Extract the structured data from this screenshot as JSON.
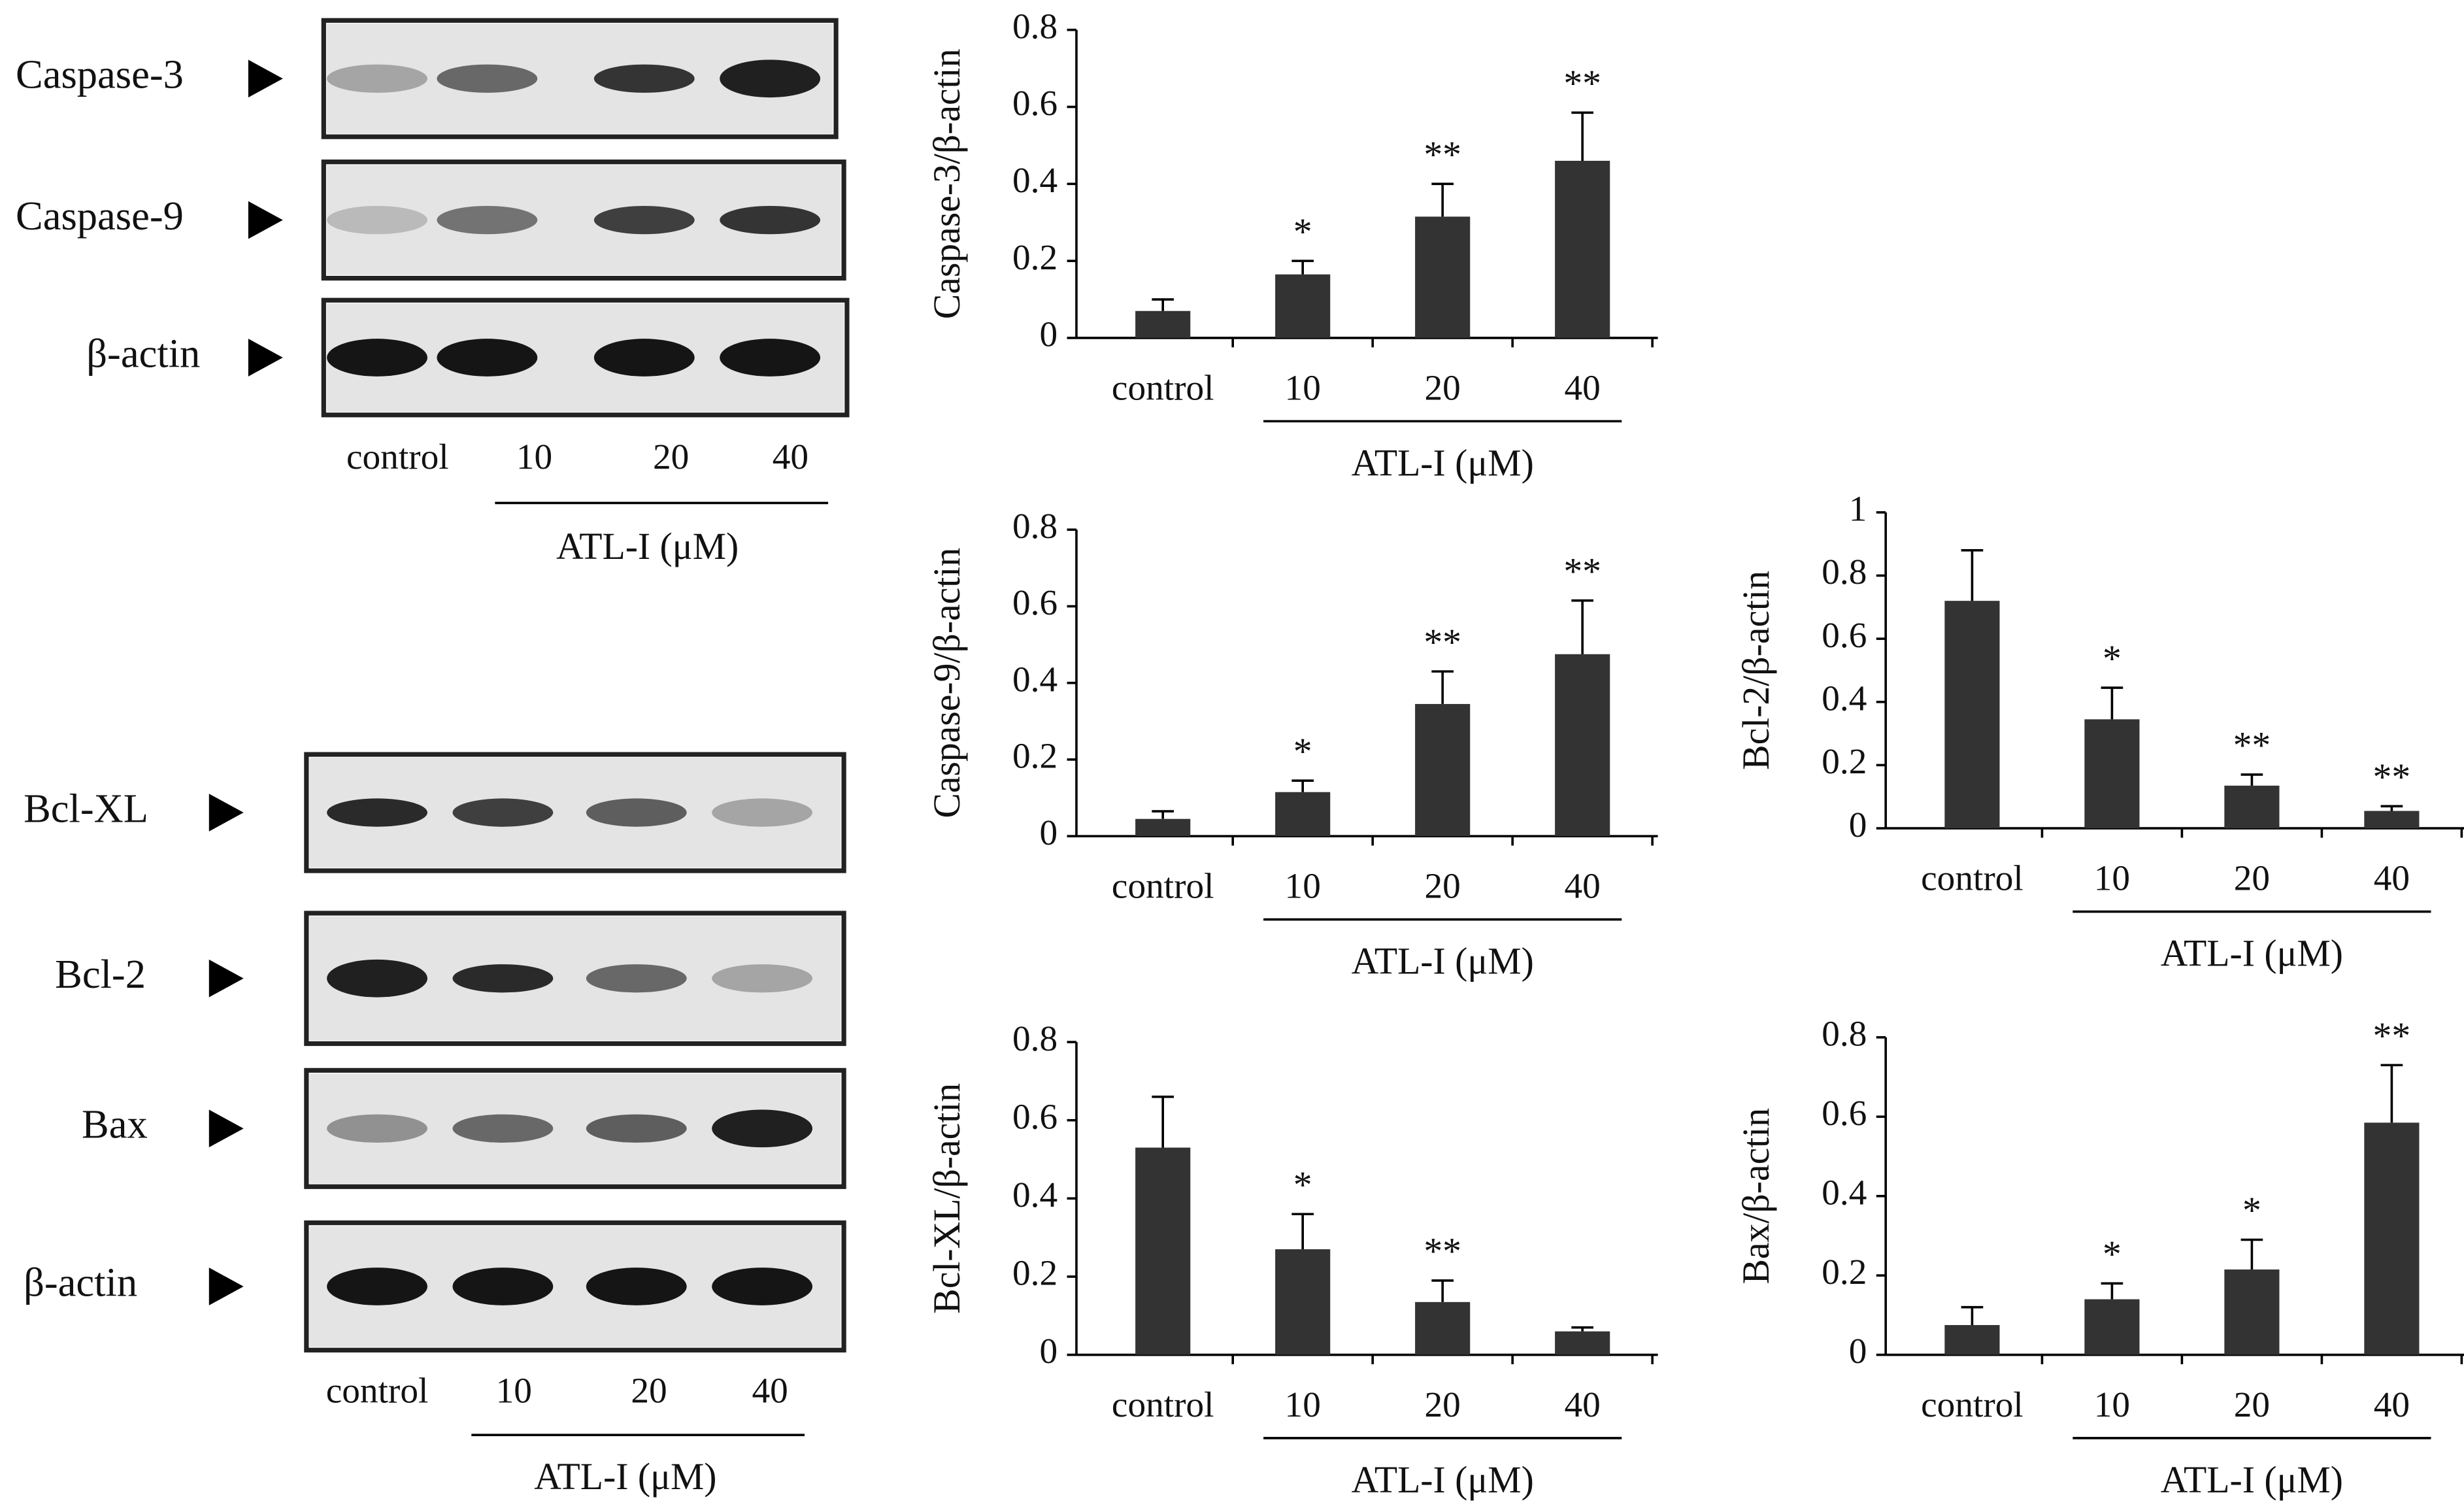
{
  "blots": [
    {
      "rows": [
        "Caspase-3",
        "Caspase-9",
        "β-actin"
      ],
      "lanes": [
        "control",
        "10",
        "20",
        "40"
      ],
      "xlabel": "ATL-I (μM)"
    },
    {
      "rows": [
        "Bcl-XL",
        "Bcl-2",
        "Bax",
        "β-actin"
      ],
      "lanes": [
        "control",
        "10",
        "20",
        "40"
      ],
      "xlabel": "ATL-I (μM)"
    }
  ],
  "chart_data": [
    {
      "type": "bar",
      "ylabel": "Caspase-3/β-actin",
      "xlabel": "ATL-I (μM)",
      "categories": [
        "control",
        "10",
        "20",
        "40"
      ],
      "values": [
        0.07,
        0.165,
        0.315,
        0.46
      ],
      "errors": [
        0.03,
        0.035,
        0.085,
        0.125
      ],
      "annotations": [
        null,
        "*",
        "**",
        "**"
      ],
      "color": "#333333",
      "ylim": [
        0,
        0.8
      ],
      "yticks": [
        0,
        0.2,
        0.4,
        0.6,
        0.8
      ]
    },
    {
      "type": "bar",
      "ylabel": "Caspase-9/β-actin",
      "xlabel": "ATL-I (μM)",
      "categories": [
        "control",
        "10",
        "20",
        "40"
      ],
      "values": [
        0.045,
        0.115,
        0.345,
        0.475
      ],
      "errors": [
        0.02,
        0.03,
        0.085,
        0.14
      ],
      "annotations": [
        null,
        "*",
        "**",
        "**"
      ],
      "color": "#333333",
      "ylim": [
        0,
        0.8
      ],
      "yticks": [
        0,
        0.2,
        0.4,
        0.6,
        0.8
      ]
    },
    {
      "type": "bar",
      "ylabel": "Bcl-2/β-actin",
      "xlabel": "ATL-I (μM)",
      "categories": [
        "control",
        "10",
        "20",
        "40"
      ],
      "values": [
        0.72,
        0.345,
        0.135,
        0.055
      ],
      "errors": [
        0.16,
        0.1,
        0.035,
        0.015
      ],
      "annotations": [
        null,
        "*",
        "**",
        "**"
      ],
      "color": "#333333",
      "ylim": [
        0,
        1
      ],
      "yticks": [
        0,
        0.2,
        0.4,
        0.6,
        0.8,
        1
      ]
    },
    {
      "type": "bar",
      "ylabel": "Bcl-XL/β-actin",
      "xlabel": "ATL-I (μM)",
      "categories": [
        "control",
        "10",
        "20",
        "40"
      ],
      "values": [
        0.53,
        0.27,
        0.135,
        0.06
      ],
      "errors": [
        0.13,
        0.09,
        0.055,
        0.01
      ],
      "annotations": [
        null,
        "*",
        "**",
        null
      ],
      "color": "#333333",
      "ylim": [
        0,
        0.8
      ],
      "yticks": [
        0,
        0.2,
        0.4,
        0.6,
        0.8
      ]
    },
    {
      "type": "bar",
      "ylabel": "Bax/β-actin",
      "xlabel": "ATL-I (μM)",
      "categories": [
        "control",
        "10",
        "20",
        "40"
      ],
      "values": [
        0.075,
        0.14,
        0.215,
        0.585
      ],
      "errors": [
        0.045,
        0.04,
        0.075,
        0.145
      ],
      "annotations": [
        null,
        "*",
        "*",
        "**"
      ],
      "color": "#333333",
      "ylim": [
        0,
        0.8
      ],
      "yticks": [
        0,
        0.2,
        0.4,
        0.6,
        0.8
      ]
    }
  ]
}
